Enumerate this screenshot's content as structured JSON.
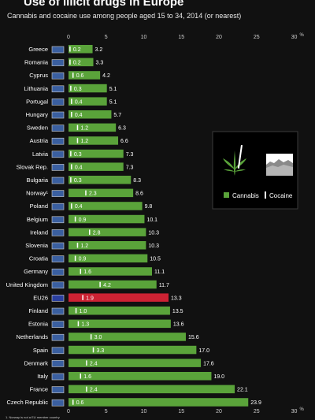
{
  "header": {
    "title": "Use of illicit drugs in Europe",
    "subtitle": "Cannabis and cocaine use among people aged 15 to 34, 2014 (or nearest)",
    "footnote": "1. Norway is not a EU member country"
  },
  "colors": {
    "background": "#111111",
    "cannabis": "#5aa33a",
    "highlight": "#cc2233",
    "cocaine_marker": "#ffffff"
  },
  "icons": {
    "cannabis": "cannabis-leaf-icon",
    "cocaine": "cocaine-powder-icon"
  },
  "chart_data": {
    "type": "bar",
    "orientation": "horizontal",
    "categories": [
      "Greece",
      "Romania",
      "Cyprus",
      "Lithuania",
      "Portugal",
      "Hungary",
      "Sweden",
      "Austria",
      "Latvia",
      "Slovak Rep.",
      "Bulgaria",
      "Norway¹",
      "Poland",
      "Belgium",
      "Ireland",
      "Slovenia",
      "Croatia",
      "Germany",
      "United Kingdom",
      "EU26",
      "Finland",
      "Estonia",
      "Netherlands",
      "Spain",
      "Denmark",
      "Italy",
      "France",
      "Czech Republic"
    ],
    "highlight_category": "EU26",
    "series": [
      {
        "name": "Cannabis",
        "values": [
          3.2,
          3.3,
          4.2,
          5.1,
          5.1,
          5.7,
          6.3,
          6.6,
          7.3,
          7.3,
          8.3,
          8.6,
          9.8,
          10.1,
          10.3,
          10.3,
          10.5,
          11.1,
          11.7,
          13.3,
          13.5,
          13.6,
          15.6,
          17.0,
          17.6,
          19.0,
          22.1,
          23.9
        ]
      },
      {
        "name": "Cocaine",
        "values": [
          0.2,
          0.2,
          0.6,
          0.3,
          0.4,
          0.4,
          1.2,
          1.2,
          0.3,
          0.4,
          0.3,
          2.3,
          0.4,
          0.9,
          2.8,
          1.2,
          0.9,
          1.6,
          4.2,
          1.9,
          1.0,
          1.3,
          3.0,
          3.3,
          2.4,
          1.6,
          2.4,
          0.6
        ]
      }
    ],
    "x_unit": "%",
    "xlim": [
      0,
      30
    ],
    "xticks": [
      0,
      5,
      10,
      15,
      20,
      25,
      30
    ],
    "legend_position": "right",
    "grid": false
  }
}
